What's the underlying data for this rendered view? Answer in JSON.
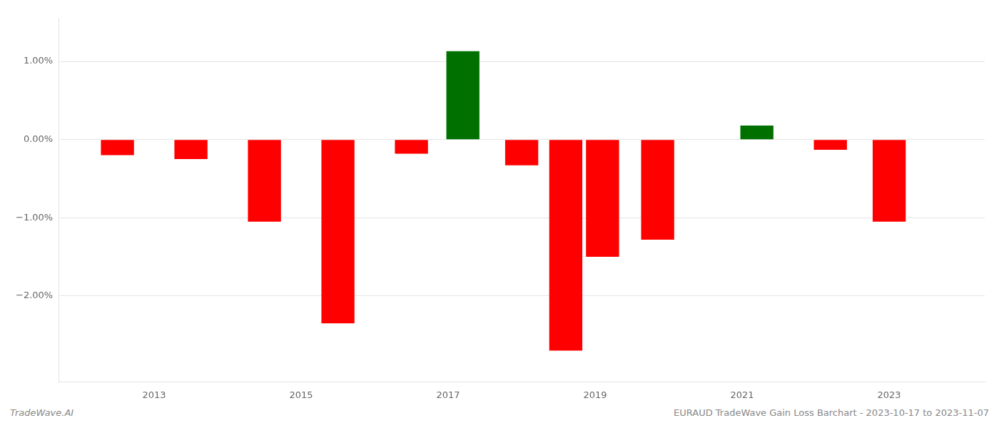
{
  "chart_data": {
    "type": "bar",
    "x": [
      2012.5,
      2013.5,
      2014.5,
      2015.5,
      2016.5,
      2017.2,
      2018.0,
      2018.6,
      2019.1,
      2019.85,
      2021.2,
      2022.2,
      2023.0
    ],
    "values": [
      -0.2,
      -0.25,
      -1.05,
      -2.35,
      -0.18,
      1.13,
      -0.33,
      -2.7,
      -1.5,
      -1.28,
      0.18,
      -0.13,
      -1.05
    ],
    "colors": [
      "#ff0000",
      "#ff0000",
      "#ff0000",
      "#ff0000",
      "#ff0000",
      "#007000",
      "#ff0000",
      "#ff0000",
      "#ff0000",
      "#ff0000",
      "#007000",
      "#ff0000",
      "#ff0000"
    ],
    "xlim": [
      2011.7,
      2024.3
    ],
    "xticks": [
      2013,
      2015,
      2017,
      2019,
      2021,
      2023
    ],
    "ylim": [
      -3.1,
      1.55
    ],
    "yticks": [
      {
        "value": -2.0,
        "label": "−2.00%"
      },
      {
        "value": -1.0,
        "label": "−1.00%"
      },
      {
        "value": 0.0,
        "label": "0.00%"
      },
      {
        "value": 1.0,
        "label": "1.00%"
      }
    ],
    "grid": true,
    "annotations": [
      "TradeWave.AI",
      "EURAUD TradeWave Gain Loss Barchart - 2023-10-17 to 2023-11-07"
    ]
  }
}
